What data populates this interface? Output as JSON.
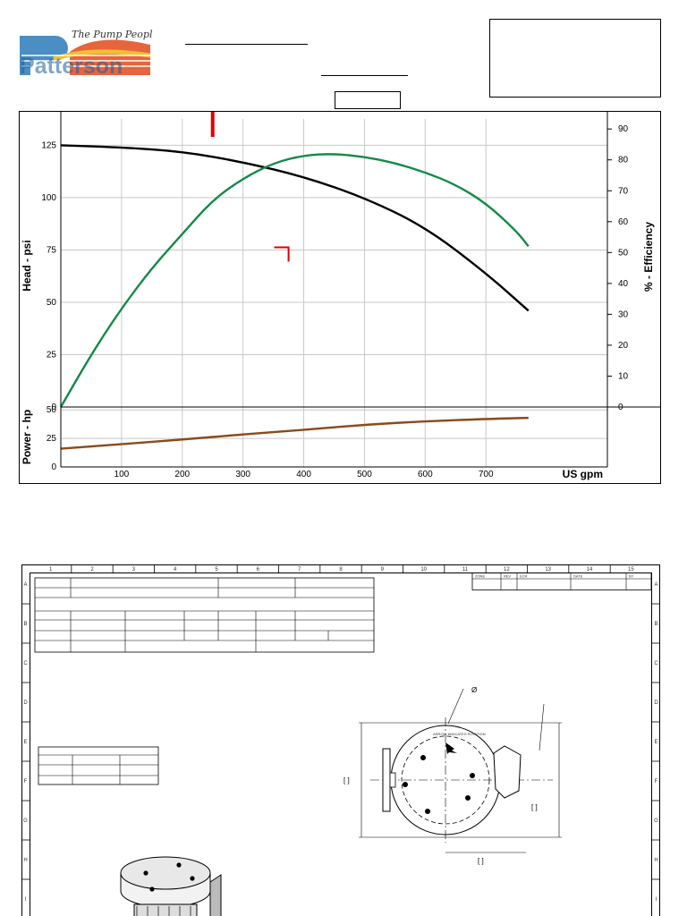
{
  "logo": {
    "wordmark": "Patterson",
    "tagline": "The Pump People"
  },
  "header": {
    "line1_text": "",
    "line2_text": "",
    "box_text": "",
    "info_box_text": ""
  },
  "chart_data": {
    "type": "line",
    "xlabel": "US gpm",
    "ylabel_left": "Head - psi",
    "ylabel_right": "% - Efficiency",
    "ylabel_power": "Power - hp",
    "x_ticks": [
      "100",
      "200",
      "300",
      "400",
      "500",
      "600",
      "700"
    ],
    "head_ticks": [
      "0",
      "25",
      "50",
      "75",
      "100",
      "125"
    ],
    "eff_ticks": [
      "0",
      "10",
      "20",
      "30",
      "40",
      "50",
      "60",
      "70",
      "80",
      "90"
    ],
    "power_ticks": [
      "0",
      "25",
      "50"
    ],
    "xlim": [
      0,
      900
    ],
    "head_ylim": [
      0,
      135
    ],
    "eff_ylim": [
      0,
      91.5
    ],
    "power_ylim": [
      0,
      52.5
    ],
    "grid": true,
    "series": [
      {
        "axis": "head",
        "color": "#000000",
        "x": [
          0,
          100,
          200,
          300,
          400,
          500,
          600,
          700,
          770
        ],
        "y": [
          125,
          124,
          122,
          117,
          110,
          100,
          86,
          64,
          46
        ]
      },
      {
        "axis": "efficiency",
        "color": "#138a47",
        "x": [
          0,
          50,
          100,
          150,
          200,
          250,
          300,
          350,
          400,
          450,
          500,
          550,
          600,
          650,
          700,
          750,
          770
        ],
        "y": [
          0,
          17,
          32,
          45,
          56,
          67,
          74,
          79,
          81.5,
          82,
          81,
          79,
          76,
          72,
          66,
          57,
          52
        ]
      },
      {
        "axis": "power",
        "color": "#8a4a1a",
        "x": [
          0,
          100,
          200,
          300,
          400,
          500,
          600,
          700,
          770
        ],
        "y": [
          16,
          20,
          24,
          28.5,
          32.5,
          37,
          40,
          42,
          43
        ]
      }
    ],
    "operating_range": {
      "color": "#fffac8",
      "polygon": [
        [
          120,
          140
        ],
        [
          160,
          205
        ],
        [
          180,
          280
        ],
        [
          430,
          435
        ],
        [
          665,
          355
        ],
        [
          445,
          170
        ],
        [
          80,
          215
        ]
      ]
    },
    "markers": [
      {
        "color": "#e00000",
        "type": "design_point",
        "x": 250,
        "y": 120
      },
      {
        "color": "#e00000",
        "type": "corner",
        "x": 375,
        "y": 75
      }
    ]
  },
  "drawing": {
    "zone_numbers": [
      "1",
      "2",
      "3",
      "4",
      "5",
      "6",
      "7",
      "8",
      "9",
      "10",
      "11",
      "12",
      "13",
      "14",
      "15"
    ],
    "zone_letters": [
      "A",
      "B",
      "C",
      "D",
      "E",
      "F",
      "G",
      "H",
      "I"
    ],
    "revision_headers": [
      "ZONE",
      "REV",
      "ECR",
      "DATE",
      "BY"
    ],
    "dimension_symbol": "Ø",
    "dim_bracket_left": "[ ]",
    "dim_bracket_right": "[ ]",
    "dim_bracket_bottom": "[ ]",
    "arrow_label": "ARROW INDICATES ROTATION"
  }
}
